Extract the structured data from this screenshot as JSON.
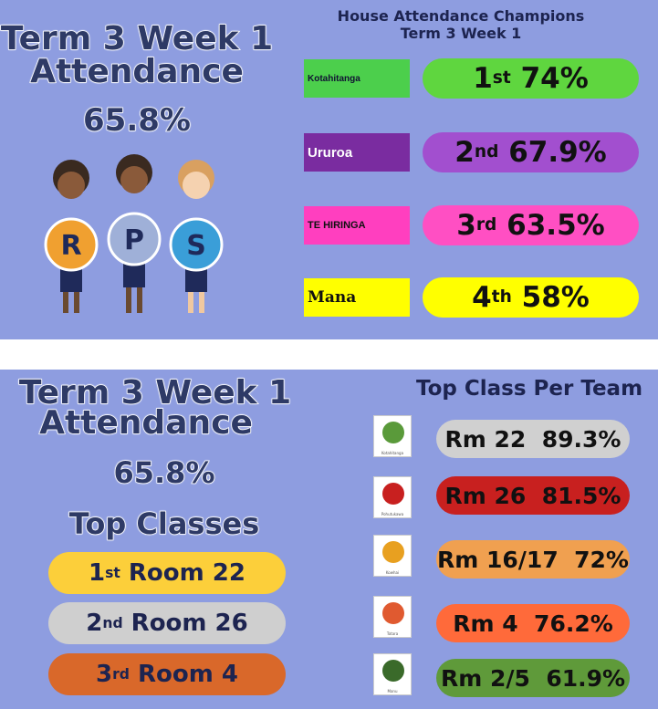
{
  "top": {
    "title_line1": "Term 3 Week 1",
    "title_line2": "Attendance",
    "attendance": "65.8%",
    "letters": [
      "R",
      "P",
      "S"
    ],
    "champions_title": "House Attendance Champions",
    "champions_subtitle": "Term 3 Week 1",
    "houses": [
      {
        "name": "Kotahitanga",
        "rank": "1",
        "suffix": "st",
        "value": "74%"
      },
      {
        "name": "Ururoa",
        "rank": "2",
        "suffix": "nd",
        "value": "67.9%"
      },
      {
        "name": "TE HIRINGA",
        "rank": "3",
        "suffix": "rd",
        "value": "63.5%"
      },
      {
        "name": "Mana",
        "rank": "4",
        "suffix": "th",
        "value": "58%"
      }
    ]
  },
  "bottom": {
    "title_line1": "Term 3 Week 1",
    "title_line2": "Attendance",
    "attendance": "65.8%",
    "top_classes_title": "Top Classes",
    "top_classes": [
      {
        "rank": "1",
        "suffix": "st",
        "room": "Room 22"
      },
      {
        "rank": "2",
        "suffix": "nd",
        "room": "Room 26"
      },
      {
        "rank": "3",
        "suffix": "rd",
        "room": "Room 4"
      }
    ],
    "per_team_title": "Top Class Per Team",
    "teams": [
      {
        "icon_label": "Kotahitanga",
        "room": "Rm 22",
        "value": "89.3%"
      },
      {
        "icon_label": "Pohutukawa",
        "room": "Rm 26",
        "value": "81.5%"
      },
      {
        "icon_label": "Kowhai",
        "room": "Rm 16/17",
        "value": "72%"
      },
      {
        "icon_label": "Totara",
        "room": "Rm 4",
        "value": "76.2%"
      },
      {
        "icon_label": "Manu",
        "room": "Rm 2/5",
        "value": "61.9%"
      }
    ]
  }
}
